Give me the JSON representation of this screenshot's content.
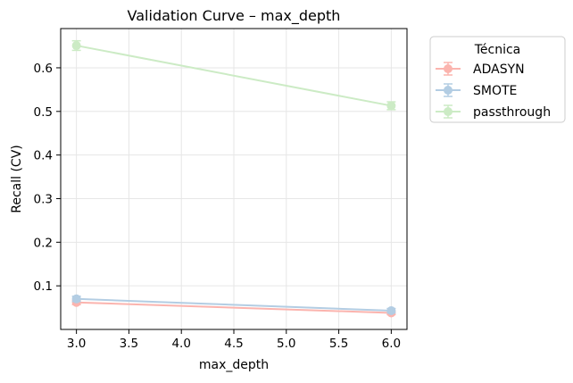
{
  "chart_data": {
    "type": "line",
    "title": "Validation Curve – max_depth",
    "xlabel": "max_depth",
    "ylabel": "Recall (CV)",
    "x": [
      3.0,
      6.0
    ],
    "xlim": [
      2.85,
      6.15
    ],
    "ylim": [
      0.0,
      0.69
    ],
    "x_ticks": [
      "3.0",
      "3.5",
      "4.0",
      "4.5",
      "5.0",
      "5.5",
      "6.0"
    ],
    "x_tick_values": [
      3.0,
      3.5,
      4.0,
      4.5,
      5.0,
      5.5,
      6.0
    ],
    "y_ticks": [
      "0.1",
      "0.2",
      "0.3",
      "0.4",
      "0.5",
      "0.6"
    ],
    "y_tick_values": [
      0.1,
      0.2,
      0.3,
      0.4,
      0.5,
      0.6
    ],
    "grid": true,
    "legend": {
      "title": "Técnica",
      "placement": "outside-right-top"
    },
    "series": [
      {
        "name": "ADASYN",
        "color": "#fbb4ae",
        "values": [
          0.062,
          0.038
        ],
        "err": [
          0.005,
          0.004
        ]
      },
      {
        "name": "SMOTE",
        "color": "#b3cde3",
        "values": [
          0.07,
          0.043
        ],
        "err": [
          0.006,
          0.005
        ]
      },
      {
        "name": "passthrough",
        "color": "#ccebc5",
        "values": [
          0.651,
          0.513
        ],
        "err": [
          0.011,
          0.009
        ]
      }
    ]
  }
}
